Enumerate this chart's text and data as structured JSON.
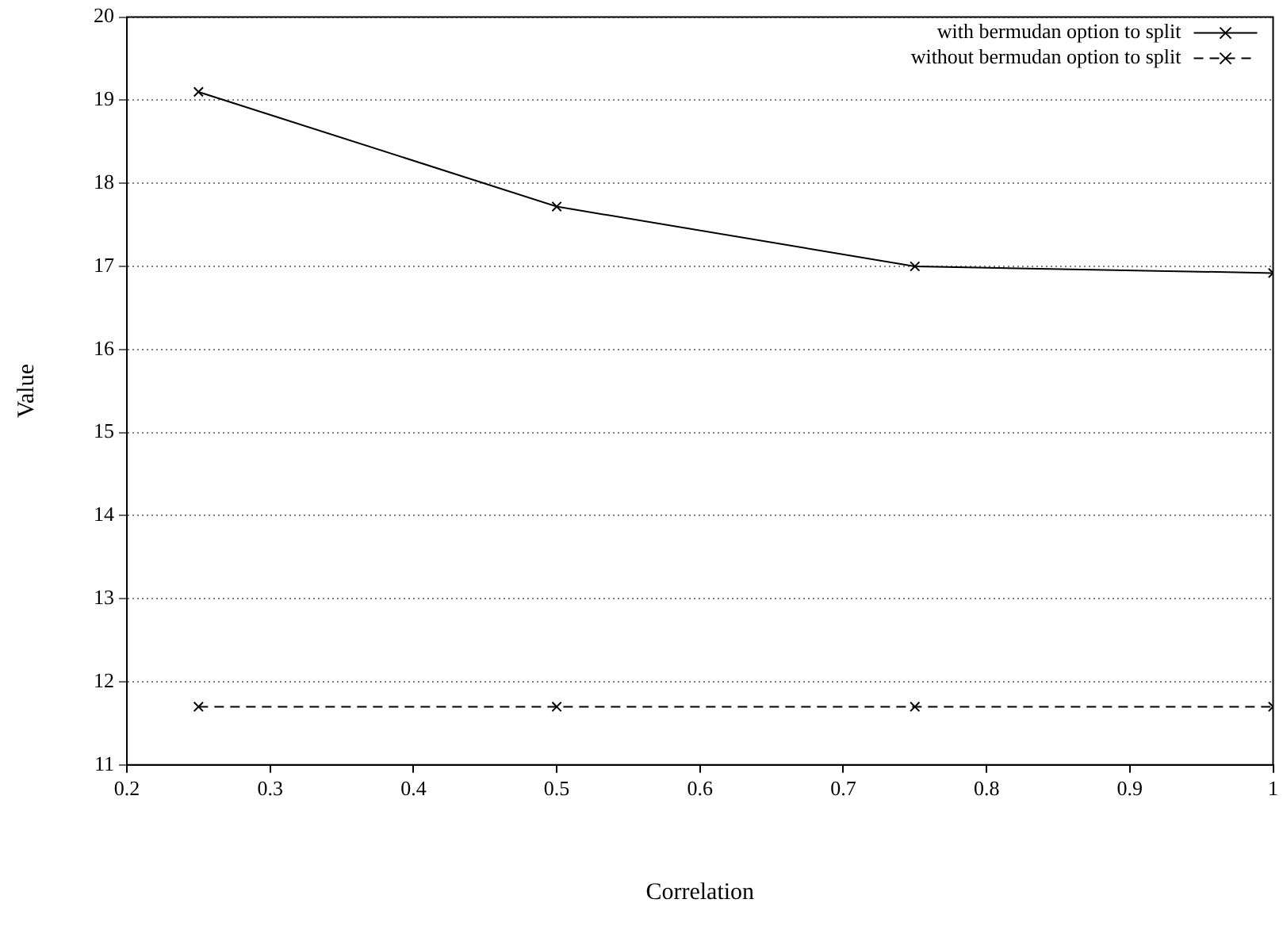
{
  "chart_data": {
    "type": "line",
    "xlabel": "Correlation",
    "ylabel": "Value",
    "x": [
      0.25,
      0.5,
      0.75,
      1
    ],
    "series": [
      {
        "name": "with bermudan option to split",
        "color": "#000000",
        "values": [
          19.1,
          17.72,
          17.0,
          16.92
        ],
        "line_style": "solid"
      },
      {
        "name": "without bermudan option to split",
        "color": "#000000",
        "values": [
          11.7,
          11.7,
          11.7,
          11.7
        ],
        "line_style": "dashed"
      }
    ],
    "xlim": [
      0.2,
      1
    ],
    "xticks": [
      0.2,
      0.3,
      0.4,
      0.5,
      0.6,
      0.7,
      0.8,
      0.9,
      1
    ],
    "ylim": [
      11,
      20
    ],
    "yticks": [
      11,
      12,
      13,
      14,
      15,
      16,
      17,
      18,
      19,
      20
    ],
    "grid": "y",
    "legend": "top right",
    "marker": "cross"
  }
}
